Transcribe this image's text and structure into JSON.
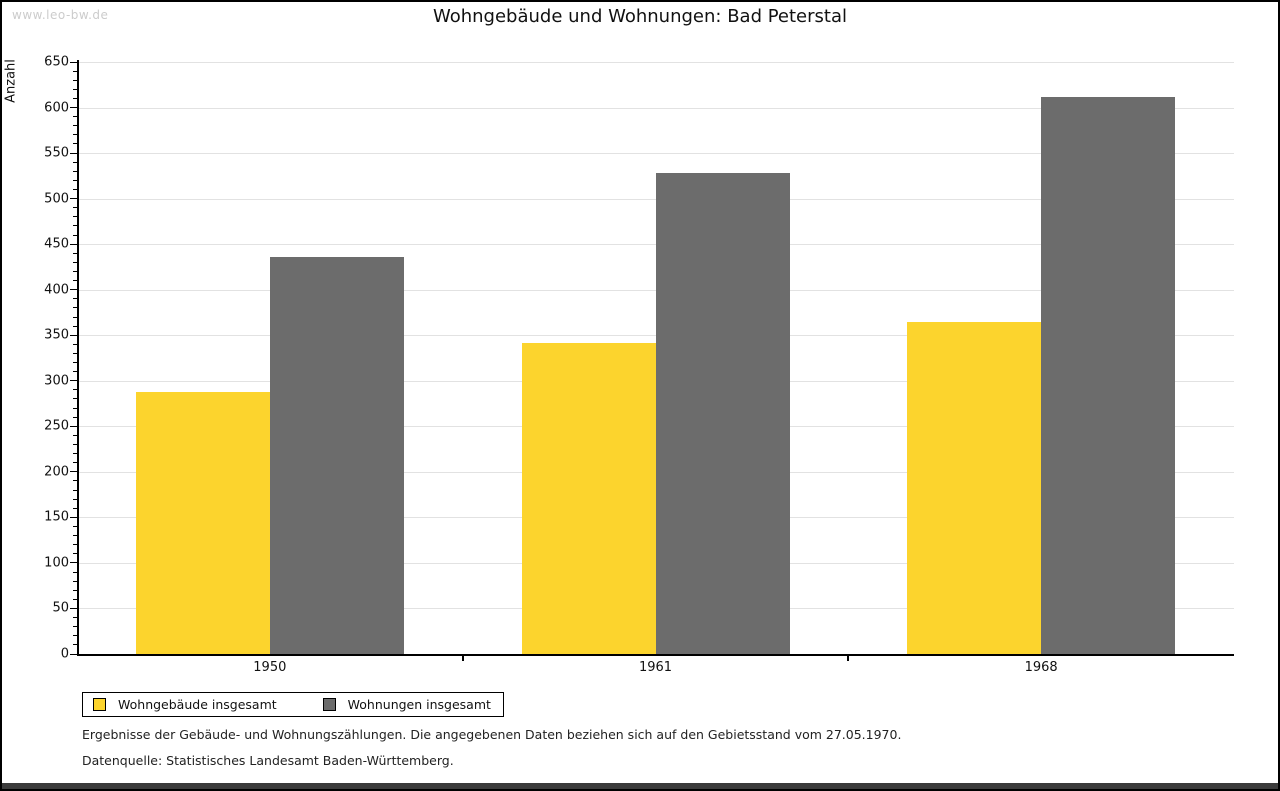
{
  "watermark": "www.leo-bw.de",
  "title": "Wohngebäude und Wohnungen: Bad Peterstal",
  "chart_data": {
    "type": "bar",
    "title": "Wohngebäude und Wohnungen: Bad Peterstal",
    "xlabel": "",
    "ylabel": "Anzahl",
    "categories": [
      "1950",
      "1961",
      "1968"
    ],
    "series": [
      {
        "name": "Wohngebäude insgesamt",
        "color": "#FCD42D",
        "values": [
          288,
          341,
          365
        ]
      },
      {
        "name": "Wohnungen insgesamt",
        "color": "#6C6C6C",
        "values": [
          436,
          528,
          612
        ]
      }
    ],
    "ylim": [
      0,
      650
    ],
    "y_major_step": 50,
    "y_minor_step": 10,
    "grid": true,
    "gridline_color": "#e2e2e2",
    "legend_position": "bottom-left"
  },
  "footer": {
    "line1": "Ergebnisse der Gebäude- und Wohnungszählungen. Die angegebenen Daten beziehen sich auf den Gebietsstand vom 27.05.1970.",
    "line2": "Datenquelle: Statistisches Landesamt Baden-Württemberg."
  }
}
